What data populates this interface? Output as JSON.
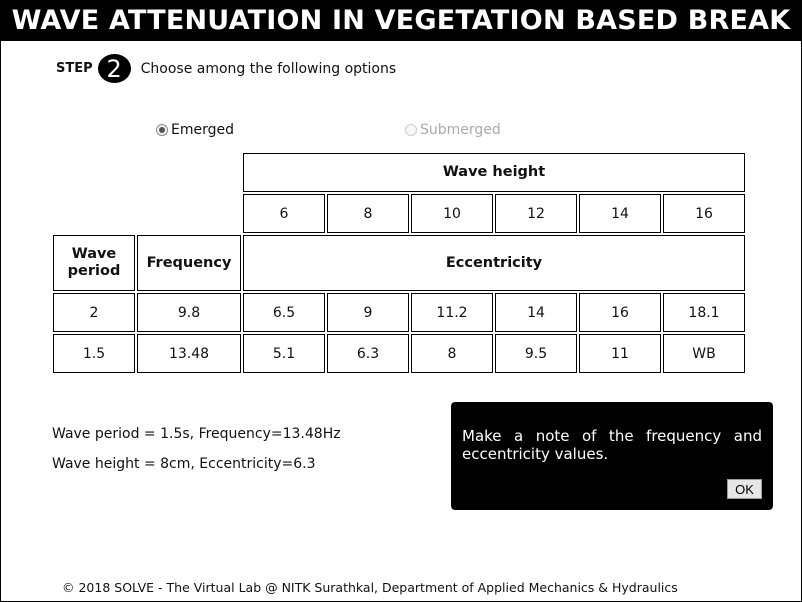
{
  "title": "WAVE ATTENUATION IN VEGETATION BASED BREAK",
  "step": {
    "word": "STEP",
    "number": "2",
    "instruction": "Choose among the following options"
  },
  "options": {
    "emerged": {
      "label": "Emerged",
      "selected": true,
      "disabled": false
    },
    "submerged": {
      "label": "Submerged",
      "selected": false,
      "disabled": true
    }
  },
  "table": {
    "wave_height_header": "Wave height",
    "wave_heights": [
      "6",
      "8",
      "10",
      "12",
      "14",
      "16"
    ],
    "col_wave_period": "Wave period",
    "col_frequency": "Frequency",
    "col_eccentricity": "Eccentricity",
    "rows": [
      {
        "period": "2",
        "frequency": "9.8",
        "values": [
          "6.5",
          "9",
          "11.2",
          "14",
          "16",
          "18.1"
        ]
      },
      {
        "period": "1.5",
        "frequency": "13.48",
        "values": [
          "5.1",
          "6.3",
          "8",
          "9.5",
          "11",
          "WB"
        ]
      }
    ]
  },
  "info": {
    "line1": "Wave period = 1.5s, Frequency=13.48Hz",
    "line2": "Wave height = 8cm, Eccentricity=6.3"
  },
  "popup": {
    "message": "Make a note of the frequency and eccentricity values.",
    "ok_label": "OK"
  },
  "footer": "© 2018 SOLVE - The Virtual Lab @ NITK Surathkal, Department of Applied Mechanics & Hydraulics"
}
